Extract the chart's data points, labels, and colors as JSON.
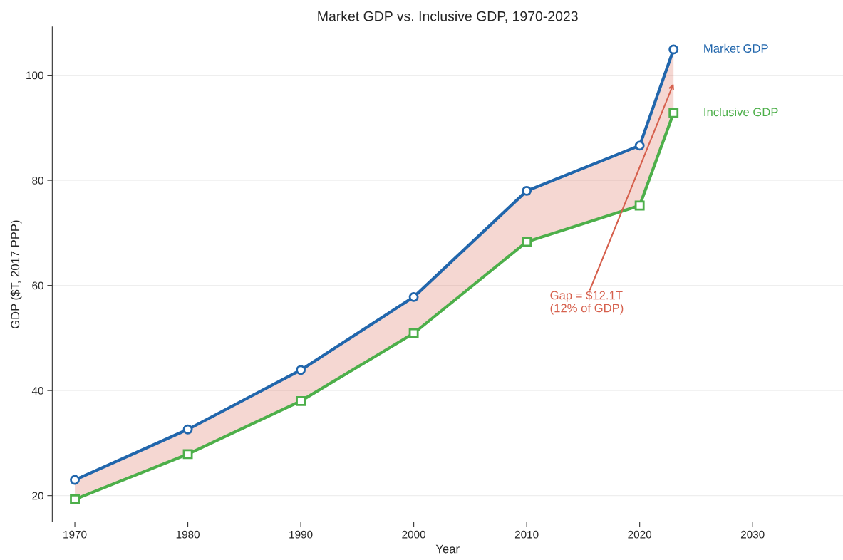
{
  "chart_data": {
    "type": "line",
    "title": "Market GDP vs. Inclusive GDP, 1970-2023",
    "xlabel": "Year",
    "ylabel": "GDP ($T, 2017 PPP)",
    "x": [
      1970,
      1980,
      1990,
      2000,
      2010,
      2020,
      2023
    ],
    "series": [
      {
        "name": "Market GDP",
        "color": "#2166ac",
        "marker": "circle",
        "values": [
          23.0,
          32.6,
          43.9,
          57.8,
          78.0,
          86.6,
          104.9
        ],
        "lower": [
          19.3,
          27.9,
          38.0,
          50.9,
          68.3,
          75.2,
          92.8
        ],
        "upper": [
          23.0,
          32.6,
          43.9,
          57.8,
          78.0,
          86.6,
          104.9
        ]
      },
      {
        "name": "Inclusive GDP",
        "color": "#4daf4a",
        "marker": "square",
        "values": [
          19.3,
          27.9,
          38.0,
          50.9,
          68.3,
          75.2,
          92.8
        ]
      }
    ],
    "annotations": [
      {
        "text": "Gap = $12.1T\n(12% of GDP)",
        "x": 2023,
        "y": 98.4
      }
    ],
    "xlim": [
      1968,
      2038
    ],
    "xticks": [
      1970,
      1980,
      1990,
      2000,
      2010,
      2020,
      2030
    ],
    "ylim": [
      15,
      109.2
    ],
    "yticks": [
      20,
      40,
      60,
      80,
      100
    ],
    "grid": "y",
    "legend": false,
    "line_style": "solid"
  }
}
